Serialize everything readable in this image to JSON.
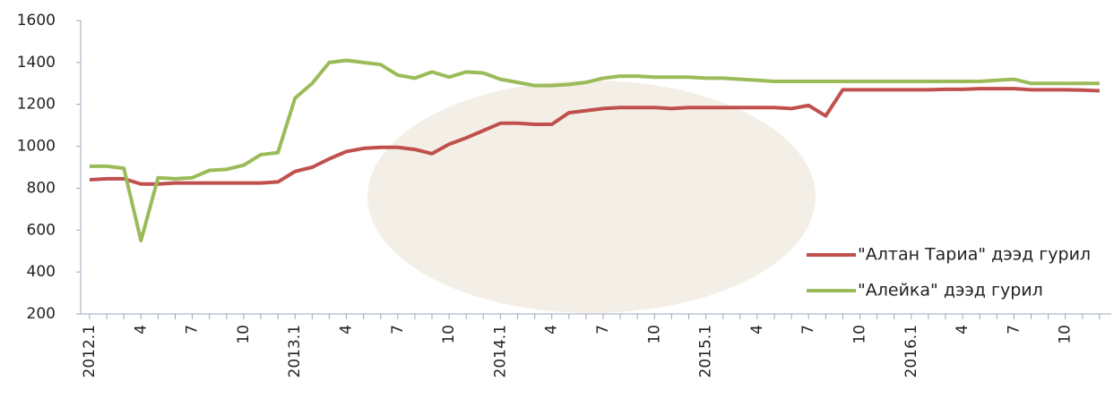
{
  "chart_data": {
    "type": "line",
    "categories": [
      "2012.1",
      null,
      null,
      "4",
      null,
      null,
      "7",
      null,
      null,
      "10",
      null,
      null,
      "2013.1",
      null,
      null,
      "4",
      null,
      null,
      "7",
      null,
      null,
      "10",
      null,
      null,
      "2014.1",
      null,
      null,
      "4",
      null,
      null,
      "7",
      null,
      null,
      "10",
      null,
      null,
      "2015.1",
      null,
      null,
      "4",
      null,
      null,
      "7",
      null,
      null,
      "10",
      null,
      null,
      "2016.1",
      null,
      null,
      "4",
      null,
      null,
      "7",
      null,
      null,
      "10",
      null,
      null
    ],
    "series": [
      {
        "name": "\"Алтан Тариа\" дээд гурил",
        "color": "#c0504d",
        "values": [
          840,
          845,
          845,
          820,
          820,
          825,
          825,
          825,
          825,
          825,
          825,
          830,
          880,
          900,
          940,
          975,
          990,
          995,
          995,
          985,
          965,
          1010,
          1040,
          1075,
          1110,
          1110,
          1105,
          1105,
          1160,
          1170,
          1180,
          1185,
          1185,
          1185,
          1180,
          1185,
          1185,
          1185,
          1185,
          1185,
          1185,
          1180,
          1195,
          1145,
          1270,
          1270,
          1270,
          1270,
          1270,
          1270,
          1272,
          1272,
          1275,
          1275,
          1275,
          1270,
          1270,
          1270,
          1268,
          1265
        ]
      },
      {
        "name": "\"Алейка\" дээд гурил",
        "color": "#9bbb59",
        "values": [
          905,
          905,
          895,
          550,
          850,
          845,
          850,
          885,
          890,
          910,
          960,
          970,
          1230,
          1300,
          1400,
          1410,
          1400,
          1390,
          1340,
          1325,
          1355,
          1330,
          1355,
          1350,
          1320,
          1305,
          1290,
          1290,
          1295,
          1305,
          1325,
          1335,
          1335,
          1330,
          1330,
          1330,
          1325,
          1325,
          1320,
          1315,
          1310,
          1310,
          1310,
          1310,
          1310,
          1310,
          1310,
          1310,
          1310,
          1310,
          1310,
          1310,
          1310,
          1315,
          1320,
          1300,
          1300,
          1300,
          1300,
          1300
        ]
      }
    ],
    "ylim": [
      200,
      1600
    ],
    "yticks": [
      200,
      400,
      600,
      800,
      1000,
      1200,
      1400,
      1600
    ],
    "grid": false,
    "legend": "lower-right"
  }
}
